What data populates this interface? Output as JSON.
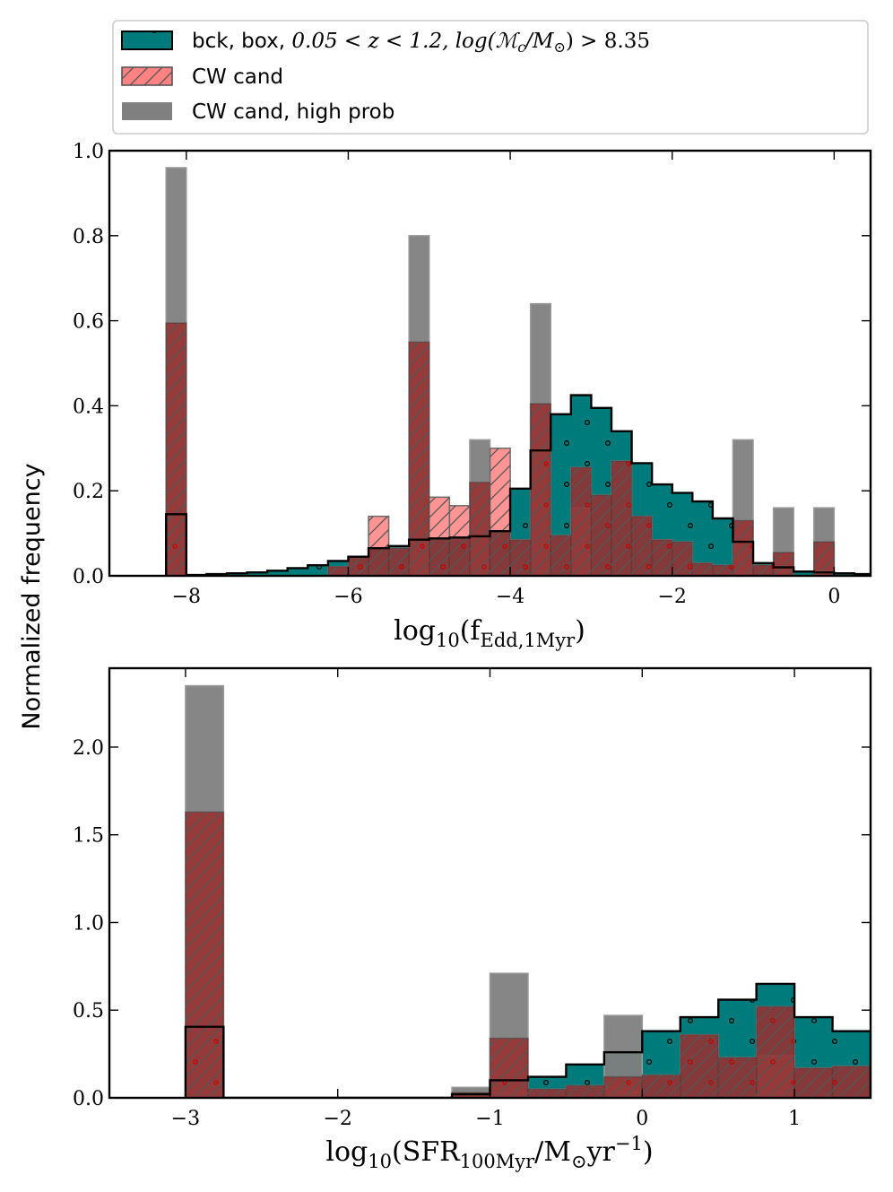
{
  "figure": {
    "ylabel": "Normalized frequency",
    "colors": {
      "bck": "#007b7b",
      "cw": "#ff6b6b",
      "high": "#808080"
    }
  },
  "legend": {
    "position": "top",
    "entries": [
      {
        "label_prefix": "bck, box, ",
        "label_math": "0.05 < z < 1.2, log(ℳ",
        "label_math_sub": "c",
        "label_math_rest": "/M",
        "label_math_sub2": "⊙",
        "label_math_end": ") > 8.35",
        "style": "bck"
      },
      {
        "label": "CW cand",
        "style": "cw"
      },
      {
        "label": "CW cand, high prob",
        "style": "high"
      }
    ]
  },
  "chart_data": [
    {
      "type": "histogram",
      "xlabel_main": "log",
      "xlabel_sub": "10",
      "xlabel_rest": "(f",
      "xlabel_sub2": "Edd,1Myr",
      "xlabel_end": ")",
      "xlim": [
        -8.95,
        0.45
      ],
      "ylim": [
        0,
        1.0
      ],
      "xticks": [
        -8,
        -6,
        -4,
        -2,
        0
      ],
      "xticklabels": [
        "−8",
        "−6",
        "−4",
        "−2",
        "0"
      ],
      "yticks": [
        0.0,
        0.2,
        0.4,
        0.6,
        0.8,
        1.0
      ],
      "yticklabels": [
        "0.0",
        "0.2",
        "0.4",
        "0.6",
        "0.8",
        "1.0"
      ],
      "bin_start": -8.25,
      "bin_width": 0.25,
      "series": [
        {
          "name": "bck",
          "values": [
            0.145,
            0.002,
            0.004,
            0.006,
            0.008,
            0.012,
            0.018,
            0.025,
            0.035,
            0.045,
            0.065,
            0.07,
            0.085,
            0.088,
            0.09,
            0.093,
            0.105,
            0.205,
            0.295,
            0.38,
            0.425,
            0.395,
            0.34,
            0.265,
            0.215,
            0.195,
            0.175,
            0.135,
            0.08,
            0.03,
            0.02,
            0.01,
            0.008,
            0.006,
            0.004
          ]
        },
        {
          "name": "CW cand",
          "values": [
            0.595,
            0,
            0,
            0,
            0,
            0,
            0,
            0,
            0.022,
            0.045,
            0.14,
            0.065,
            0.55,
            0.185,
            0.165,
            0.22,
            0.3,
            0.085,
            0.405,
            0.095,
            0.255,
            0.19,
            0.27,
            0.14,
            0.085,
            0.08,
            0.03,
            0.025,
            0.13,
            0.025,
            0.055,
            0,
            0.08,
            0,
            0
          ]
        },
        {
          "name": "CW cand, high prob",
          "values": [
            0.96,
            0,
            0,
            0,
            0,
            0,
            0,
            0,
            0,
            0,
            0,
            0,
            0.8,
            0,
            0,
            0.32,
            0,
            0,
            0.64,
            0,
            0.16,
            0,
            0,
            0,
            0,
            0,
            0,
            0,
            0.32,
            0,
            0.16,
            0,
            0.16,
            0,
            0
          ]
        }
      ]
    },
    {
      "type": "histogram",
      "xlabel_main": "log",
      "xlabel_sub": "10",
      "xlabel_rest": "(SFR",
      "xlabel_sub2": "100Myr",
      "xlabel_end": "/M",
      "xlabel_sub3": "⊙",
      "xlabel_end2": "yr",
      "xlabel_sup": "−1",
      "xlabel_close": ")",
      "xlim": [
        -3.5,
        1.5
      ],
      "ylim": [
        0,
        2.45
      ],
      "xticks": [
        -3,
        -2,
        -1,
        0,
        1
      ],
      "xticklabels": [
        "−3",
        "−2",
        "−1",
        "0",
        "1"
      ],
      "yticks": [
        0.0,
        0.5,
        1.0,
        1.5,
        2.0
      ],
      "yticklabels": [
        "0.0",
        "0.5",
        "1.0",
        "1.5",
        "2.0"
      ],
      "bin_start": -3.0,
      "bin_width": 0.25,
      "series": [
        {
          "name": "bck",
          "values": [
            0.405,
            0,
            0,
            0,
            0,
            0,
            0,
            0.02,
            0.1,
            0.12,
            0.19,
            0.26,
            0.38,
            0.46,
            0.56,
            0.65,
            0.46,
            0.38
          ]
        },
        {
          "name": "CW cand",
          "values": [
            1.63,
            0,
            0,
            0,
            0,
            0,
            0,
            0.03,
            0.34,
            0.05,
            0.07,
            0.12,
            0.13,
            0.36,
            0.23,
            0.52,
            0.17,
            0.18
          ]
        },
        {
          "name": "CW cand, high prob",
          "values": [
            2.35,
            0,
            0,
            0,
            0,
            0,
            0,
            0.06,
            0.71,
            0,
            0,
            0.47,
            0,
            0,
            0,
            0.24,
            0,
            0
          ]
        }
      ]
    }
  ]
}
